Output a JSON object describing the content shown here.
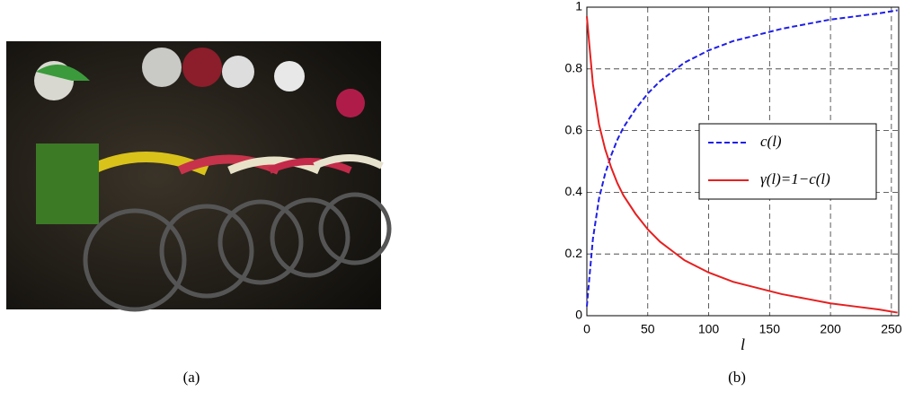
{
  "panels": {
    "a_label": "(a)",
    "b_label": "(b)"
  },
  "chart_data": {
    "type": "line",
    "xlabel": "l",
    "x": [
      0,
      2,
      5,
      10,
      15,
      20,
      25,
      30,
      40,
      50,
      60,
      70,
      80,
      100,
      120,
      140,
      160,
      180,
      200,
      220,
      240,
      255
    ],
    "series": [
      {
        "name": "c(l)",
        "color": "#1f1fe6",
        "dash": true,
        "values": [
          0.03,
          0.12,
          0.25,
          0.38,
          0.46,
          0.52,
          0.57,
          0.61,
          0.67,
          0.72,
          0.76,
          0.79,
          0.82,
          0.86,
          0.89,
          0.91,
          0.93,
          0.945,
          0.96,
          0.97,
          0.98,
          0.99
        ]
      },
      {
        "name": "γ(l)=1−c(l)",
        "color": "#e61f1f",
        "dash": false,
        "values": [
          0.97,
          0.88,
          0.75,
          0.62,
          0.54,
          0.48,
          0.43,
          0.39,
          0.33,
          0.28,
          0.24,
          0.21,
          0.18,
          0.14,
          0.11,
          0.09,
          0.07,
          0.055,
          0.04,
          0.03,
          0.02,
          0.01
        ]
      }
    ],
    "xlim": [
      0,
      256
    ],
    "xticks": [
      0,
      50,
      100,
      150,
      200,
      250
    ],
    "ylim": [
      0,
      1
    ],
    "yticks": [
      0,
      0.2,
      0.4,
      0.6,
      0.8,
      1
    ],
    "grid": true
  }
}
